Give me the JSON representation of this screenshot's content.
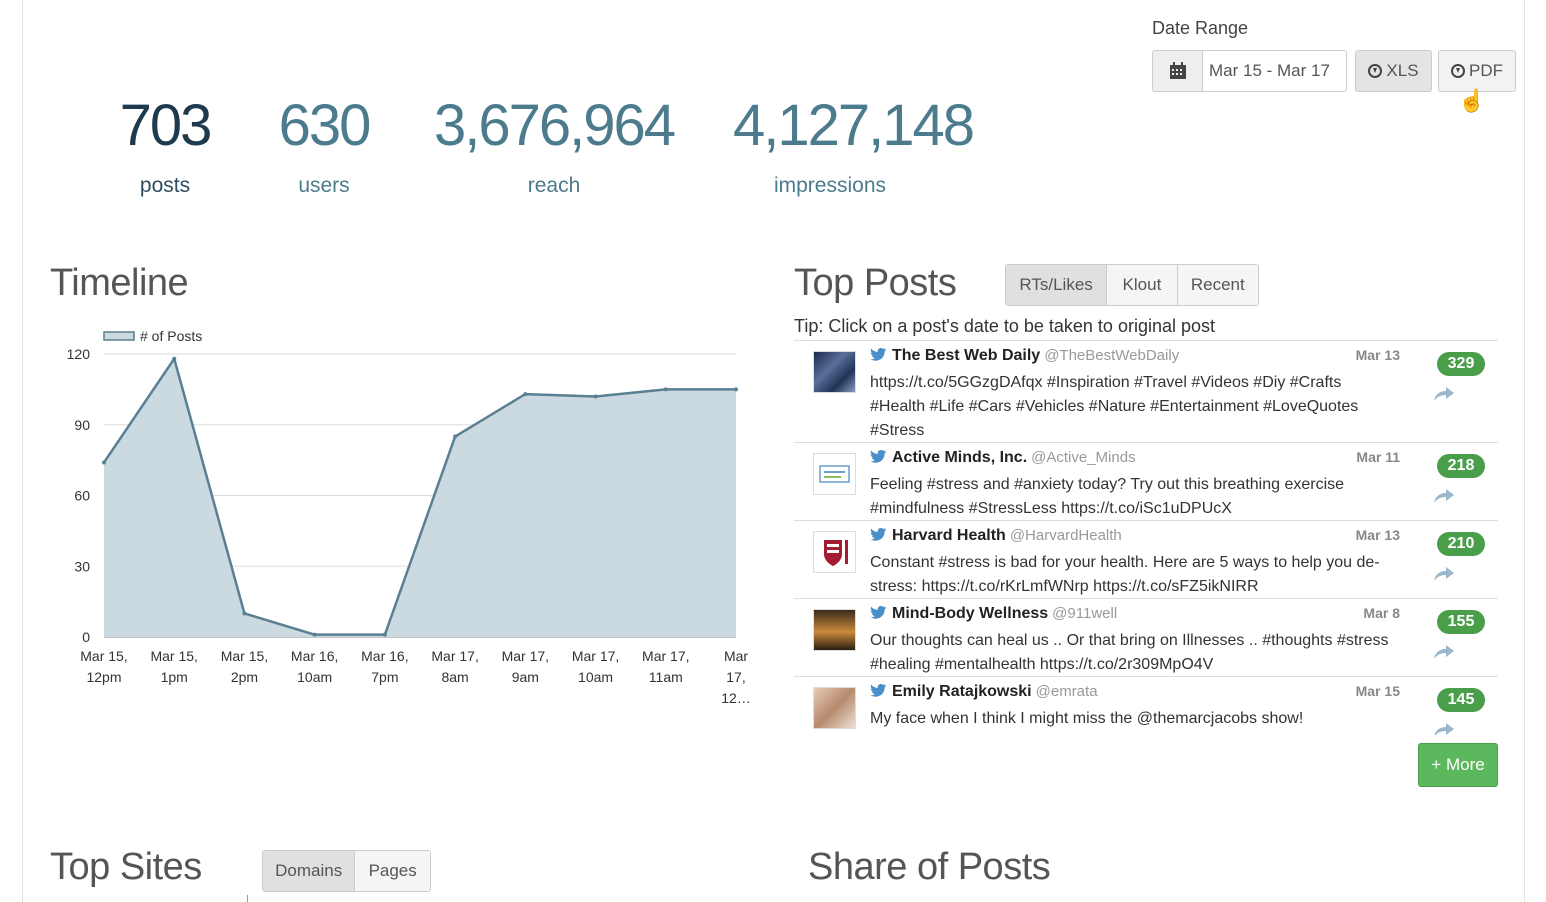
{
  "date_range": {
    "label": "Date Range",
    "value": "Mar 15 - Mar 17",
    "xls_label": "XLS",
    "pdf_label": "PDF"
  },
  "stats": [
    {
      "value": "703",
      "label": "posts"
    },
    {
      "value": "630",
      "label": "users"
    },
    {
      "value": "3,676,964",
      "label": "reach"
    },
    {
      "value": "4,127,148",
      "label": "impressions"
    }
  ],
  "timeline": {
    "title": "Timeline"
  },
  "chart_data": {
    "type": "area",
    "categories": [
      [
        "Mar 15,",
        "12pm"
      ],
      [
        "Mar 15,",
        "1pm"
      ],
      [
        "Mar 15,",
        "2pm"
      ],
      [
        "Mar 16,",
        "10am"
      ],
      [
        "Mar 16,",
        "7pm"
      ],
      [
        "Mar 17,",
        "8am"
      ],
      [
        "Mar 17,",
        "9am"
      ],
      [
        "Mar 17,",
        "10am"
      ],
      [
        "Mar 17,",
        "11am"
      ],
      [
        "Mar",
        "17,",
        "12…"
      ]
    ],
    "series": [
      {
        "name": "# of Posts",
        "values": [
          74,
          118,
          10,
          1,
          1,
          85,
          103,
          102,
          105,
          105
        ]
      }
    ],
    "ylim": [
      0,
      120
    ],
    "yticks": [
      0,
      30,
      60,
      90,
      120
    ],
    "grid": true,
    "legend": "top-left",
    "color": "#5a7f92",
    "fill": "#cbd9e1"
  },
  "top_posts": {
    "title": "Top Posts",
    "tabs": [
      "RTs/Likes",
      "Klout",
      "Recent"
    ],
    "tip": "Tip: Click on a post's date to be taken to original post",
    "posts": [
      {
        "author": "The Best Web Daily",
        "handle": "@TheBestWebDaily",
        "date": "Mar 13",
        "text": "https://t.co/5GGzgDAfqx #Inspiration #Travel #Videos #Diy #Crafts #Health #Life #Cars #Vehicles #Nature #Entertainment #LoveQuotes #Stress",
        "score": "329"
      },
      {
        "author": "Active Minds, Inc.",
        "handle": "@Active_Minds",
        "date": "Mar 11",
        "text": "Feeling #stress and #anxiety today? Try out this breathing exercise #mindfulness #StressLess https://t.co/iSc1uDPUcX",
        "score": "218"
      },
      {
        "author": "Harvard Health",
        "handle": "@HarvardHealth",
        "date": "Mar 13",
        "text": "Constant #stress is bad for your health. Here are 5 ways to help you de-stress: https://t.co/rKrLmfWNrp https://t.co/sFZ5ikNIRR",
        "score": "210"
      },
      {
        "author": "Mind-Body Wellness",
        "handle": "@911well",
        "date": "Mar 8",
        "text": "Our thoughts can heal us .. Or that bring on Illnesses .. #thoughts #stress #healing #mentalhealth https://t.co/2r309MpO4V",
        "score": "155"
      },
      {
        "author": "Emily Ratajkowski",
        "handle": "@emrata",
        "date": "Mar 15",
        "text": "My face when I think I might miss the @themarcjacobs show!",
        "score": "145"
      }
    ],
    "more_label": "+ More"
  },
  "top_sites": {
    "title": "Top Sites",
    "tabs": [
      "Domains",
      "Pages"
    ]
  },
  "share_of_posts": {
    "title": "Share of Posts"
  }
}
